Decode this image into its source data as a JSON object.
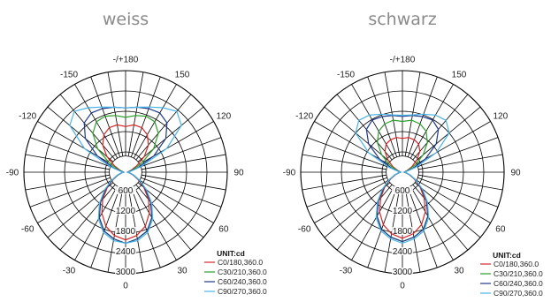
{
  "chart_data": [
    {
      "type": "polar-line",
      "title": "weiss",
      "angle_ticks": [
        "-/+180",
        "150",
        "120",
        "90",
        "60",
        "30",
        "0",
        "-30",
        "-60",
        "-90",
        "-120",
        "-150"
      ],
      "radial_ticks": [
        "600",
        "1200",
        "1800",
        "2400",
        "3000"
      ],
      "radial_max": 3000,
      "unit_label": "UNIT:cd",
      "series": [
        {
          "name": "C0/180,360.0",
          "color": "#d62728",
          "angles": [
            0,
            10,
            20,
            30,
            40,
            50,
            60,
            70,
            80,
            90,
            100,
            110,
            120,
            130,
            140,
            150,
            160,
            170,
            180
          ],
          "values": [
            2000,
            1900,
            1700,
            1400,
            1050,
            700,
            420,
            230,
            120,
            60,
            80,
            180,
            380,
            720,
            1050,
            1280,
            1400,
            1420,
            1350
          ]
        },
        {
          "name": "C30/210,360.0",
          "color": "#2ca02c",
          "angles": [
            0,
            10,
            20,
            30,
            40,
            50,
            60,
            70,
            80,
            90,
            100,
            110,
            120,
            130,
            140,
            150,
            160,
            170,
            180
          ],
          "values": [
            2100,
            2000,
            1850,
            1550,
            1150,
            760,
            450,
            250,
            120,
            60,
            90,
            240,
            560,
            1080,
            1500,
            1720,
            1760,
            1700,
            1620
          ]
        },
        {
          "name": "C60/240,360.0",
          "color": "#1f3a8a",
          "angles": [
            0,
            10,
            20,
            30,
            40,
            50,
            60,
            70,
            80,
            90,
            100,
            110,
            120,
            130,
            140,
            150,
            160,
            170,
            180
          ],
          "values": [
            2100,
            2000,
            1850,
            1550,
            1150,
            760,
            450,
            250,
            120,
            60,
            120,
            380,
            960,
            1550,
            1900,
            2020,
            2000,
            1950,
            1900
          ]
        },
        {
          "name": "C90/270,360.0",
          "color": "#4ab3e6",
          "angles": [
            0,
            10,
            20,
            30,
            40,
            50,
            60,
            70,
            80,
            90,
            100,
            110,
            120,
            130,
            140,
            150,
            160,
            170,
            180
          ],
          "values": [
            2100,
            2050,
            1900,
            1600,
            1200,
            800,
            480,
            260,
            130,
            70,
            150,
            500,
            1400,
            2150,
            2350,
            2200,
            2050,
            1950,
            1900
          ]
        }
      ]
    },
    {
      "type": "polar-line",
      "title": "schwarz",
      "angle_ticks": [
        "-/+180",
        "150",
        "120",
        "90",
        "60",
        "30",
        "0",
        "-30",
        "-60",
        "-90",
        "-120",
        "-150"
      ],
      "radial_ticks": [
        "600",
        "1200",
        "1800",
        "2400",
        "3000"
      ],
      "radial_max": 3000,
      "unit_label": "UNIT:cd",
      "series": [
        {
          "name": "C0/180,360.0",
          "color": "#d62728",
          "angles": [
            0,
            10,
            20,
            30,
            40,
            50,
            60,
            70,
            80,
            90,
            100,
            110,
            120,
            130,
            140,
            150,
            160,
            170,
            180
          ],
          "values": [
            1950,
            1850,
            1650,
            1350,
            1000,
            680,
            400,
            220,
            110,
            55,
            70,
            150,
            320,
            560,
            800,
            960,
            1020,
            1040,
            1000
          ]
        },
        {
          "name": "C30/210,360.0",
          "color": "#2ca02c",
          "angles": [
            0,
            10,
            20,
            30,
            40,
            50,
            60,
            70,
            80,
            90,
            100,
            110,
            120,
            130,
            140,
            150,
            160,
            170,
            180
          ],
          "values": [
            2050,
            1950,
            1800,
            1500,
            1100,
            730,
            430,
            240,
            115,
            55,
            80,
            200,
            440,
            800,
            1150,
            1400,
            1520,
            1560,
            1500
          ]
        },
        {
          "name": "C60/240,360.0",
          "color": "#1f3a8a",
          "angles": [
            0,
            10,
            20,
            30,
            40,
            50,
            60,
            70,
            80,
            90,
            100,
            110,
            120,
            130,
            140,
            150,
            160,
            170,
            180
          ],
          "values": [
            2050,
            1950,
            1800,
            1500,
            1100,
            730,
            430,
            240,
            115,
            55,
            100,
            320,
            780,
            1300,
            1650,
            1780,
            1750,
            1700,
            1650
          ]
        },
        {
          "name": "C90/270,360.0",
          "color": "#4ab3e6",
          "angles": [
            0,
            10,
            20,
            30,
            40,
            50,
            60,
            70,
            80,
            90,
            100,
            110,
            120,
            130,
            140,
            150,
            160,
            170,
            180
          ],
          "values": [
            2100,
            2000,
            1850,
            1550,
            1150,
            770,
            450,
            250,
            125,
            60,
            120,
            420,
            1150,
            1800,
            2000,
            1950,
            1820,
            1720,
            1680
          ]
        }
      ]
    }
  ]
}
